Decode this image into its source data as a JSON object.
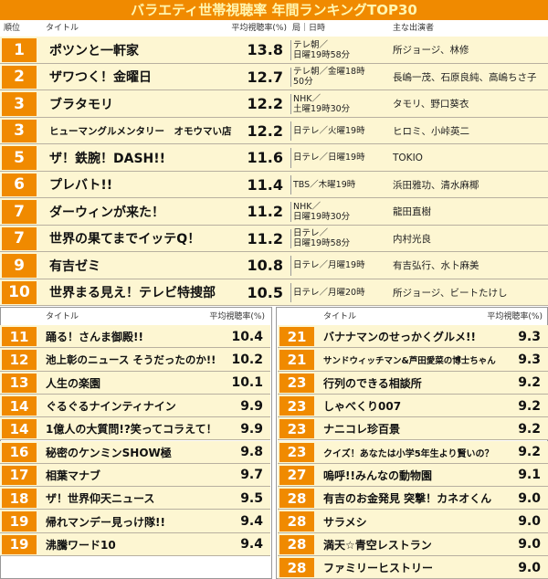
{
  "title": "バラエティ世帯視聴率 年間ランキングTOP30",
  "top": {
    "headers": [
      "順位",
      "タイトル",
      "平均視聴率(%)",
      "局｜日時",
      "主な出演者"
    ],
    "rows": [
      [
        "1",
        "ポツンと一軒家",
        "13.8",
        "テレ朝／\n日曜19時58分",
        "所ジョージ、林修"
      ],
      [
        "2",
        "ザワつく！金曜日",
        "12.7",
        "テレ朝／金曜18時\n50分",
        "長嶋一茂、石原良純、高嶋ちさ子"
      ],
      [
        "3",
        "ブラタモリ",
        "12.2",
        "NHK／\n土曜19時30分",
        "タモリ、野口葵衣"
      ],
      [
        "3",
        "ヒューマングルメンタリー　オモウマい店",
        "12.2",
        "日テレ／火曜19時",
        "ヒロミ、小峠英二"
      ],
      [
        "5",
        "ザ！鉄腕！DASH!!",
        "11.6",
        "日テレ／日曜19時",
        "TOKIO"
      ],
      [
        "6",
        "プレバト!!",
        "11.4",
        "TBS／木曜19時",
        "浜田雅功、清水麻椰"
      ],
      [
        "7",
        "ダーウィンが来た！",
        "11.2",
        "NHK／\n日曜19時30分",
        "龍田直樹"
      ],
      [
        "7",
        "世界の果てまでイッテQ！",
        "11.2",
        "日テレ／\n日曜19時58分",
        "内村光良"
      ],
      [
        "9",
        "有吉ゼミ",
        "10.8",
        "日テレ／月曜19時",
        "有吉弘行、水卜麻美"
      ],
      [
        "10",
        "世界まる見え！テレビ特捜部",
        "10.5",
        "日テレ／月曜20時",
        "所ジョージ、ビートたけし"
      ]
    ]
  },
  "left": {
    "headers": [
      "タイトル",
      "平均視聴率(%)"
    ],
    "rows": [
      [
        "11",
        "踊る！さんま御殿!!",
        "10.4"
      ],
      [
        "12",
        "池上彰のニュース そうだったのか!!",
        "10.2"
      ],
      [
        "13",
        "人生の楽園",
        "10.1"
      ],
      [
        "14",
        "ぐるぐるナインティナイン",
        "9.9"
      ],
      [
        "14",
        "1億人の大質問!?笑ってコラえて！",
        "9.9"
      ],
      [
        "16",
        "秘密のケンミンSHOW極",
        "9.8"
      ],
      [
        "17",
        "相葉マナブ",
        "9.7"
      ],
      [
        "18",
        "ザ！世界仰天ニュース",
        "9.5"
      ],
      [
        "19",
        "帰れマンデー見っけ隊!!",
        "9.4"
      ],
      [
        "19",
        "沸騰ワード10",
        "9.4"
      ]
    ]
  },
  "right": {
    "headers": [
      "タイトル",
      "平均視聴率(%)"
    ],
    "rows": [
      [
        "21",
        "バナナマンのせっかくグルメ!!",
        "9.3"
      ],
      [
        "21",
        "サンドウィッチマン&芦田愛菜の博士ちゃん",
        "9.3"
      ],
      [
        "23",
        "行列のできる相談所",
        "9.2"
      ],
      [
        "23",
        "しゃべくり007",
        "9.2"
      ],
      [
        "23",
        "ナニコレ珍百景",
        "9.2"
      ],
      [
        "23",
        "クイズ！あなたは小学5年生より賢いの？",
        "9.2"
      ],
      [
        "27",
        "嗚呼!!みんなの動物園",
        "9.1"
      ],
      [
        "28",
        "有吉のお金発見 突撃！カネオくん",
        "9.0"
      ],
      [
        "28",
        "サラメシ",
        "9.0"
      ],
      [
        "28",
        "満天☆青空レストラン",
        "9.0"
      ],
      [
        "28",
        "ファミリーヒストリー",
        "9.0"
      ]
    ]
  }
}
